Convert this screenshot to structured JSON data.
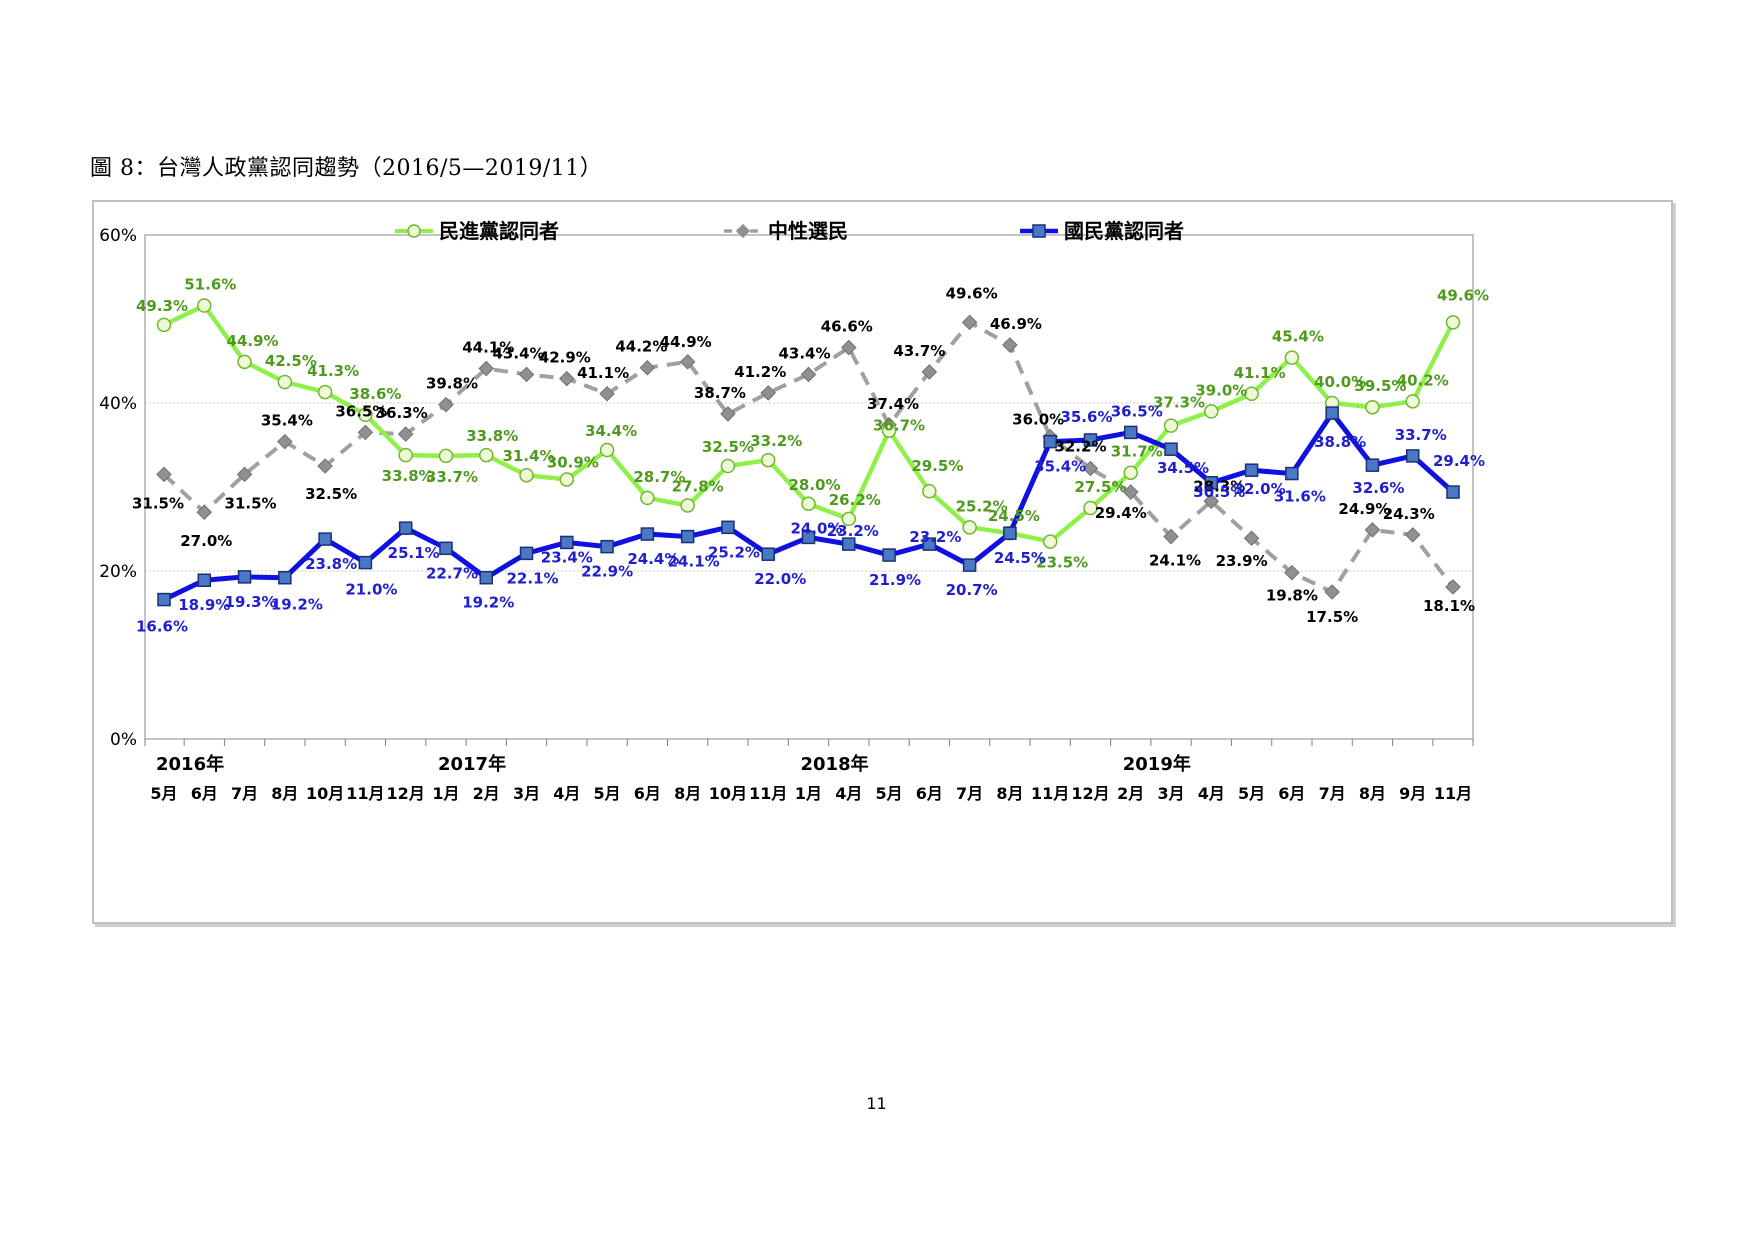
{
  "caption": "圖 8：台灣人政黨認同趨勢（2016/5—2019/11）",
  "page_number": "11",
  "colors": {
    "dpp": "#8ff04a",
    "dpp_label": "#4f9a1e",
    "neutral": "#a0a0a0",
    "neutral_label": "#000000",
    "kmt": "#1010e0",
    "kmt_marker": "#4a78c4",
    "kmt_label": "#1f1fd0"
  },
  "chart_data": {
    "type": "line",
    "ylim": [
      0,
      60
    ],
    "yticks": [
      "0%",
      "20%",
      "40%",
      "60%"
    ],
    "grid": "horizontal dashed",
    "legend_position": "top",
    "months": [
      "5月",
      "6月",
      "7月",
      "8月",
      "10月",
      "11月",
      "12月",
      "1月",
      "2月",
      "3月",
      "4月",
      "5月",
      "6月",
      "8月",
      "10月",
      "11月",
      "1月",
      "4月",
      "5月",
      "6月",
      "7月",
      "8月",
      "11月",
      "12月",
      "2月",
      "3月",
      "4月",
      "5月",
      "6月",
      "7月",
      "8月",
      "9月",
      "11月"
    ],
    "years": [
      {
        "label": "2016年",
        "index": 0
      },
      {
        "label": "2017年",
        "index": 7
      },
      {
        "label": "2018年",
        "index": 16
      },
      {
        "label": "2019年",
        "index": 24
      }
    ],
    "series": [
      {
        "key": "dpp",
        "name": "民進黨認同者",
        "values": [
          49.3,
          51.6,
          44.9,
          42.5,
          41.3,
          38.6,
          33.8,
          33.7,
          33.8,
          31.4,
          30.9,
          34.4,
          28.7,
          27.8,
          32.5,
          33.2,
          28.0,
          26.2,
          36.7,
          29.5,
          25.2,
          24.5,
          23.5,
          27.5,
          31.7,
          37.3,
          39.0,
          41.1,
          45.4,
          40.0,
          39.5,
          40.2,
          49.6
        ],
        "labels": [
          "49.3%",
          "51.6%",
          "44.9%",
          "42.5%",
          "41.3%",
          "38.6%",
          "33.8%",
          "33.7%",
          "33.8%",
          "31.4%",
          "30.9%",
          "34.4%",
          "28.7%",
          "27.8%",
          "32.5%",
          "33.2%",
          "28.0%",
          "26.2%",
          "36.7%",
          "29.5%",
          "25.2%",
          "24.5%",
          "23.5%",
          "27.5%",
          "31.7%",
          "37.3%",
          "39.0%",
          "41.1%",
          "45.4%",
          "40.0%",
          "39.5%",
          "40.2%",
          "49.6%"
        ]
      },
      {
        "key": "neutral",
        "name": "中性選民",
        "values": [
          31.5,
          27.0,
          31.5,
          35.4,
          32.5,
          36.5,
          36.3,
          39.8,
          44.1,
          43.4,
          42.9,
          41.1,
          44.2,
          44.9,
          38.7,
          41.2,
          43.4,
          46.6,
          37.4,
          43.7,
          49.6,
          46.9,
          36.0,
          32.2,
          29.4,
          24.1,
          28.3,
          23.9,
          19.8,
          17.5,
          24.9,
          24.3,
          18.1
        ],
        "labels": [
          "31.5%",
          "27.0%",
          "31.5%",
          "35.4%",
          "32.5%",
          "36.5%",
          "36.3%",
          "39.8%",
          "44.1%",
          "43.4%",
          "42.9%",
          "41.1%",
          "44.2%",
          "44.9%",
          "38.7%",
          "41.2%",
          "43.4%",
          "46.6%",
          "37.4%",
          "43.7%",
          "49.6%",
          "46.9%",
          "36.0%",
          "32.2%",
          "29.4%",
          "24.1%",
          "28.3%",
          "23.9%",
          "19.8%",
          "17.5%",
          "24.9%",
          "24.3%",
          "18.1%"
        ]
      },
      {
        "key": "kmt",
        "name": "國民黨認同者",
        "values": [
          16.6,
          18.9,
          19.3,
          19.2,
          23.8,
          21.0,
          25.1,
          22.7,
          19.2,
          22.1,
          23.4,
          22.9,
          24.4,
          24.1,
          25.2,
          22.0,
          24.0,
          23.2,
          21.9,
          23.2,
          20.7,
          24.5,
          35.4,
          35.6,
          36.5,
          34.5,
          30.5,
          32.0,
          31.6,
          38.8,
          32.6,
          33.7,
          29.4
        ],
        "labels": [
          "16.6%",
          "18.9%",
          "19.3%",
          "19.2%",
          "23.8%",
          "21.0%",
          "25.1%",
          "22.7%",
          "19.2%",
          "22.1%",
          "23.4%",
          "22.9%",
          "24.4%",
          "24.1%",
          "25.2%",
          "22.0%",
          "24.0%",
          "23.2%",
          "21.9%",
          "23.2%",
          "20.7%",
          "24.5%",
          "35.4%",
          "35.6%",
          "36.5%",
          "34.5%",
          "30.5%",
          "32.0%",
          "31.6%",
          "38.8%",
          "32.6%",
          "33.7%",
          "29.4%"
        ]
      }
    ]
  }
}
